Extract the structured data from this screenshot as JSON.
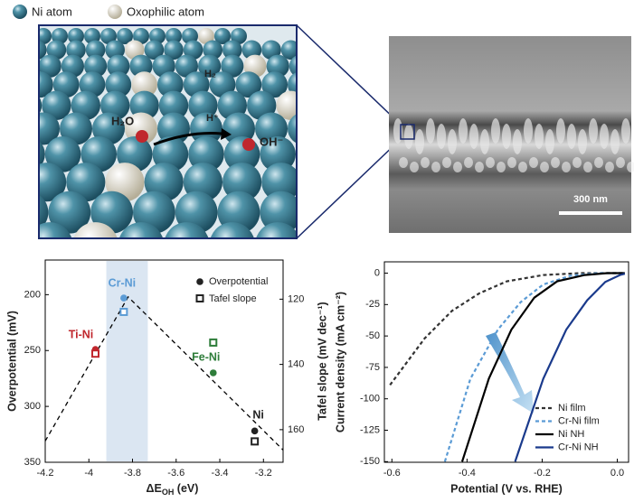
{
  "illustration": {
    "legend": [
      "Ni atom",
      "Oxophilic atom"
    ],
    "labels": [
      "H₂O",
      "H₂",
      "H⁺",
      "OH⁻"
    ],
    "scale_bar": "300 nm"
  },
  "chart_data": [
    {
      "type": "scatter",
      "x_label": {
        "main": "ΔE",
        "sub": "OH",
        "unit": " (eV)"
      },
      "y_label": "Overpotential (mV)",
      "y2_label": "Tafel slope (mV dec⁻¹)",
      "xlim": [
        -4.2,
        -3.11
      ],
      "xticks": [
        -4.2,
        -4.0,
        -3.8,
        -3.6,
        -3.4,
        -3.2
      ],
      "ylim": [
        350,
        169
      ],
      "yticks": [
        200,
        250,
        300,
        350
      ],
      "y2lim": [
        170,
        108
      ],
      "y2ticks": [
        120,
        140,
        160
      ],
      "x": [
        -3.97,
        -3.84,
        -3.43,
        -3.24
      ],
      "point_labels": [
        "Ti-Ni",
        "Cr-Ni",
        "Fe-Ni",
        "Ni"
      ],
      "point_colors": [
        "#c0272d",
        "#5b9bd5",
        "#2e7d3a",
        "#222222"
      ],
      "series": [
        {
          "name": "Overpotential",
          "marker": "circle",
          "values": [
            249,
            203,
            270,
            322
          ]
        },
        {
          "name": "Tafel slope",
          "marker": "square",
          "axis": "y2",
          "values": [
            136.7,
            123.9,
            133.3,
            163.6
          ]
        }
      ],
      "trend_line": {
        "x": [
          -4.2,
          -3.82,
          -3.11
        ],
        "values": [
          331,
          202,
          339
        ]
      },
      "highlight_band": [
        -3.92,
        -3.73
      ],
      "legend": "upper right"
    },
    {
      "type": "line",
      "x_label": "Potential (V vs. RHE)",
      "y_label": "Current density (mA cm⁻²)",
      "xlim": [
        -0.62,
        0.03
      ],
      "xticks": [
        -0.6,
        -0.4,
        -0.2,
        {
          "value": 0,
          "label": "0.0"
        }
      ],
      "ylim": [
        -150.5,
        9
      ],
      "yticks": [
        -150,
        -125,
        -100,
        -75,
        -50,
        -25,
        0
      ],
      "series": [
        {
          "name": "Ni film",
          "color": "#333333",
          "dashed": true,
          "x": [
            -0.605,
            -0.513,
            -0.44,
            -0.367,
            -0.294,
            -0.197,
            -0.1,
            0.02
          ],
          "values": [
            -89,
            -52,
            -30,
            -16,
            -6.5,
            -1.5,
            0,
            0
          ]
        },
        {
          "name": "Cr-Ni film",
          "color": "#5b9bd5",
          "dashed": true,
          "x": [
            -0.459,
            -0.391,
            -0.318,
            -0.257,
            -0.197,
            -0.124,
            -0.05,
            0.02
          ],
          "values": [
            -150,
            -84,
            -45,
            -23,
            -9,
            -2,
            0,
            0
          ]
        },
        {
          "name": "Ni NH",
          "color": "#000000",
          "dashed": false,
          "x": [
            -0.413,
            -0.342,
            -0.282,
            -0.221,
            -0.16,
            -0.087,
            -0.027,
            0.02
          ],
          "values": [
            -150,
            -84,
            -45,
            -19.5,
            -6.5,
            -1.5,
            0,
            0
          ]
        },
        {
          "name": "Cr-Ni NH",
          "color": "#1a3a8c",
          "dashed": false,
          "x": [
            -0.272,
            -0.197,
            -0.136,
            -0.08,
            -0.032,
            0.007,
            0.02
          ],
          "values": [
            -150,
            -84,
            -45,
            -21.5,
            -7,
            -1.5,
            -0.5
          ]
        }
      ],
      "legend": "lower right"
    }
  ]
}
